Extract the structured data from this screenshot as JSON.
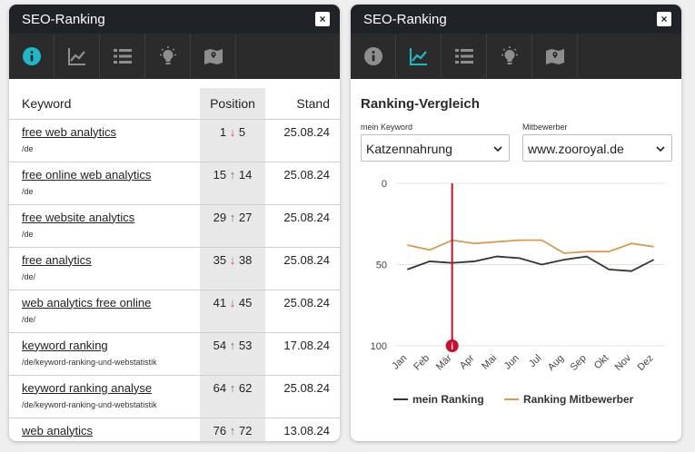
{
  "left_widget": {
    "title": "SEO-Ranking",
    "close_label": "×",
    "table": {
      "headers": {
        "keyword": "Keyword",
        "position": "Position",
        "stand": "Stand"
      },
      "rows": [
        {
          "keyword": "free web analytics",
          "path": "/de",
          "pos_from": "1",
          "trend": "down",
          "pos_to": "5",
          "stand": "25.08.24"
        },
        {
          "keyword": "free online web analytics",
          "path": "/de",
          "pos_from": "15",
          "trend": "up",
          "pos_to": "14",
          "stand": "25.08.24"
        },
        {
          "keyword": "free website analytics",
          "path": "/de",
          "pos_from": "29",
          "trend": "up",
          "pos_to": "27",
          "stand": "25.08.24"
        },
        {
          "keyword": "free analytics",
          "path": "/de/",
          "pos_from": "35",
          "trend": "down",
          "pos_to": "38",
          "stand": "25.08.24"
        },
        {
          "keyword": "web analytics free online",
          "path": "/de/",
          "pos_from": "41",
          "trend": "down",
          "pos_to": "45",
          "stand": "25.08.24"
        },
        {
          "keyword": "keyword ranking",
          "path": "/de/keyword-ranking-und-webstatistik",
          "pos_from": "54",
          "trend": "up",
          "pos_to": "53",
          "stand": "17.08.24"
        },
        {
          "keyword": "keyword ranking analyse",
          "path": "/de/keyword-ranking-und-webstatistik",
          "pos_from": "64",
          "trend": "up",
          "pos_to": "62",
          "stand": "25.08.24"
        },
        {
          "keyword": "web analytics",
          "path": "",
          "pos_from": "76",
          "trend": "up",
          "pos_to": "72",
          "stand": "13.08.24"
        }
      ]
    }
  },
  "right_widget": {
    "title": "SEO-Ranking",
    "close_label": "×",
    "heading": "Ranking-Vergleich",
    "my_keyword": {
      "label": "mein Keyword",
      "value": "Katzennahrung"
    },
    "competitor": {
      "label": "Mitbewerber",
      "value": "www.zooroyal.de"
    }
  },
  "tabs": [
    {
      "name": "info",
      "icon": "info-icon"
    },
    {
      "name": "chart",
      "icon": "line-chart-icon"
    },
    {
      "name": "list",
      "icon": "list-icon"
    },
    {
      "name": "ideas",
      "icon": "lightbulb-icon"
    },
    {
      "name": "map",
      "icon": "map-icon"
    }
  ],
  "active_tab": {
    "left": 0,
    "right": 1
  },
  "colors": {
    "accent": "#1fb8c8",
    "icon_inactive": "#8e8e8e",
    "my_ranking": "#333333",
    "competitor_ranking": "#d89a4f",
    "marker": "#c8102e",
    "arrow_up": "#2e9a3a",
    "arrow_down": "#d9433c"
  },
  "chart_data": {
    "type": "line",
    "x": [
      "Jan",
      "Feb",
      "Mär",
      "Apr",
      "Mai",
      "Jun",
      "Jul",
      "Aug",
      "Sep",
      "Okt",
      "Nov",
      "Dez"
    ],
    "ylim": [
      0,
      100
    ],
    "y_inverted": true,
    "yticks": [
      "0",
      "50",
      "100"
    ],
    "series": [
      {
        "name": "mein Ranking",
        "color": "#333333",
        "values": [
          53,
          48,
          49,
          48,
          45,
          46,
          50,
          47,
          45,
          53,
          54,
          47
        ]
      },
      {
        "name": "Ranking Mitbewerber",
        "color": "#d89a4f",
        "values": [
          38,
          41,
          35,
          37,
          36,
          35,
          35,
          43,
          42,
          42,
          37,
          39
        ]
      }
    ],
    "marker": {
      "x": "Mär",
      "label": "i"
    },
    "legend": "bottom"
  }
}
